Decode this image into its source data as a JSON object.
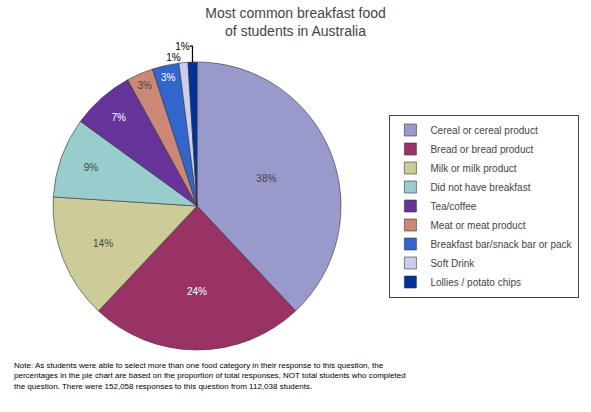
{
  "chart_data": {
    "type": "pie",
    "title": "Most common breakfast food\nof students in Australia",
    "categories": [
      "Cereal or cereal product",
      "Bread or bread product",
      "Milk or milk product",
      "Did not have breakfast",
      "Tea/coffee",
      "Meat or meat product",
      "Breakfast bar/snack bar or pack",
      "Soft Drink",
      "Lollies / potato chips"
    ],
    "values": [
      38,
      24,
      14,
      9,
      7,
      3,
      3,
      1,
      1
    ],
    "value_labels": [
      "38%",
      "24%",
      "14%",
      "9%",
      "7%",
      "3%",
      "3%",
      "1%",
      "1%"
    ],
    "colors": [
      "#9999cc",
      "#993366",
      "#cccc99",
      "#99cccc",
      "#663399",
      "#cc8877",
      "#3366cc",
      "#ccccee",
      "#003399"
    ],
    "data_labels": true,
    "legend": "right",
    "annotations": [
      "Note: As students were able to select more than one food category in their response to this question, the\npercentages in the pie chart are based on the proportion of total responses, NOT total students who completed\nthe question. There were 152,058 responses to this question from 112,038 students."
    ]
  }
}
